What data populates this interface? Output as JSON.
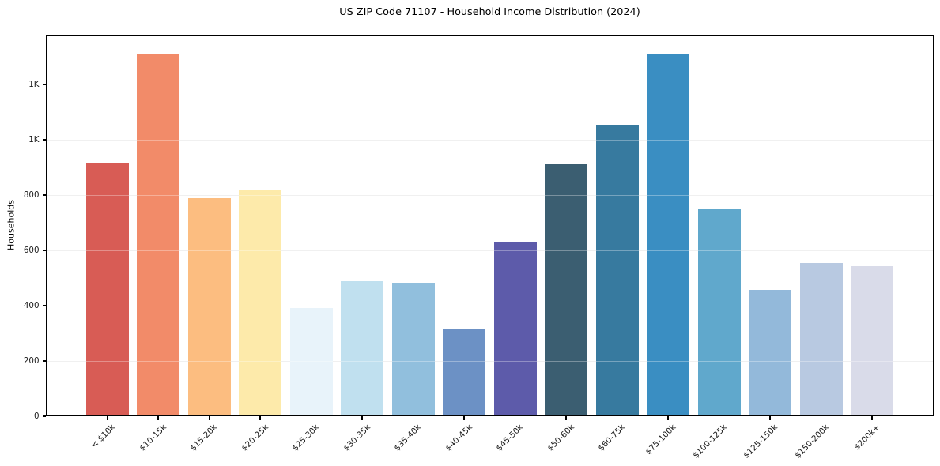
{
  "chart_data": {
    "type": "bar",
    "title": "US ZIP Code 71107 - Household Income Distribution (2024)",
    "xlabel": "",
    "ylabel": "Households",
    "categories": [
      "< $10k",
      "$10-15k",
      "$15-20k",
      "$20-25k",
      "$25-30k",
      "$30-35k",
      "$35-40k",
      "$40-45k",
      "$45-50k",
      "$50-60k",
      "$60-75k",
      "$75-100k",
      "$100-125k",
      "$125-150k",
      "$150-200k",
      "$200k+"
    ],
    "values": [
      918,
      1310,
      790,
      820,
      392,
      489,
      482,
      318,
      632,
      911,
      1055,
      1310,
      752,
      456,
      554,
      544
    ],
    "bar_colors": [
      "#d85c55",
      "#f28b69",
      "#fcbd80",
      "#fdeaaa",
      "#e8f3fa",
      "#c0e0ef",
      "#91bfdd",
      "#6c91c5",
      "#5d5baa",
      "#3b5e71",
      "#377a9f",
      "#3a8ec2",
      "#60a8cc",
      "#93b9da",
      "#b8c9e1",
      "#d9dbe9"
    ],
    "y_ticks": [
      {
        "value": 0,
        "label": "0"
      },
      {
        "value": 200,
        "label": "200"
      },
      {
        "value": 400,
        "label": "400"
      },
      {
        "value": 600,
        "label": "600"
      },
      {
        "value": 800,
        "label": "800"
      },
      {
        "value": 1000,
        "label": "1K"
      },
      {
        "value": 1200,
        "label": "1K"
      }
    ],
    "ylim": [
      0,
      1380
    ],
    "grid": "horizontal",
    "legend": "none",
    "colors": {
      "background": "#ffffff",
      "gridline": "#e9e9e9",
      "spine": "#000000",
      "text": "#1a1a1a"
    }
  }
}
